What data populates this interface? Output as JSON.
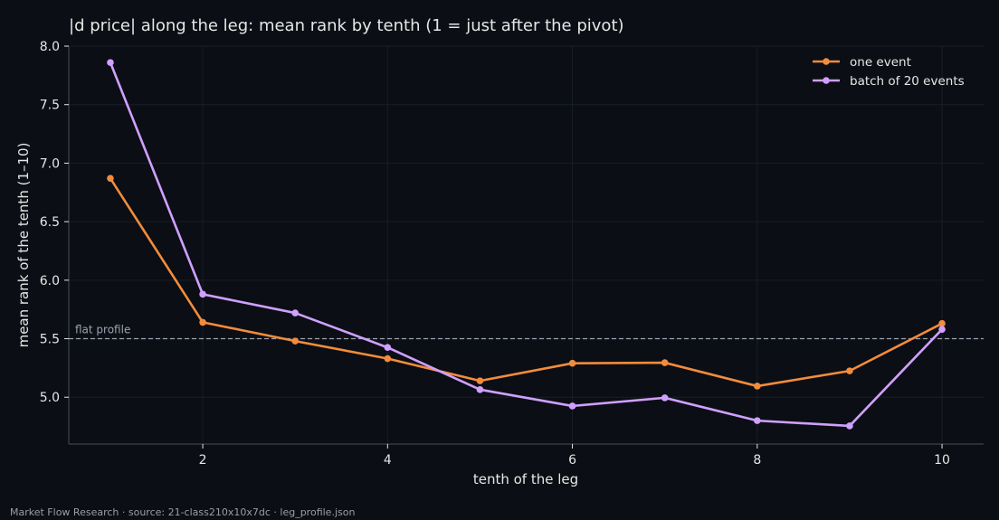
{
  "chart_data": {
    "type": "line",
    "title": "|d price| along the leg: mean rank by tenth (1 = just after the pivot)",
    "xlabel": "tenth of the leg",
    "ylabel": "mean rank of the tenth (1–10)",
    "xlim": [
      0.55,
      10.45
    ],
    "ylim": [
      4.6,
      8.0
    ],
    "xticks": [
      2,
      4,
      6,
      8,
      10
    ],
    "yticks": [
      5.0,
      5.5,
      6.0,
      6.5,
      7.0,
      7.5,
      8.0
    ],
    "xtick_labels": [
      "2",
      "4",
      "6",
      "8",
      "10"
    ],
    "ytick_labels": [
      "5.0",
      "5.5",
      "6.0",
      "6.5",
      "7.0",
      "7.5",
      "8.0"
    ],
    "grid": true,
    "legend_position": "top-right",
    "x": [
      1,
      2,
      3,
      4,
      5,
      6,
      7,
      8,
      9,
      10
    ],
    "series": [
      {
        "name": "one event",
        "color": "#f28c3c",
        "values": [
          6.87,
          5.64,
          5.48,
          5.33,
          5.14,
          5.29,
          5.295,
          5.095,
          5.225,
          5.63
        ]
      },
      {
        "name": "batch of 20 events",
        "color": "#cfa0ff",
        "values": [
          7.86,
          5.88,
          5.72,
          5.425,
          5.065,
          4.925,
          4.995,
          4.8,
          4.755,
          5.58
        ]
      }
    ],
    "reference_line": {
      "y": 5.5,
      "label": "flat profile",
      "color": "#9aa3b2"
    }
  },
  "footer": "Market Flow Research · source: 21-class210x10x7dc · leg_profile.json",
  "colors": {
    "background": "#0b0e14",
    "axes": "#4a4f58",
    "grid": "#1a1e26",
    "text": "#e6e6e6"
  }
}
